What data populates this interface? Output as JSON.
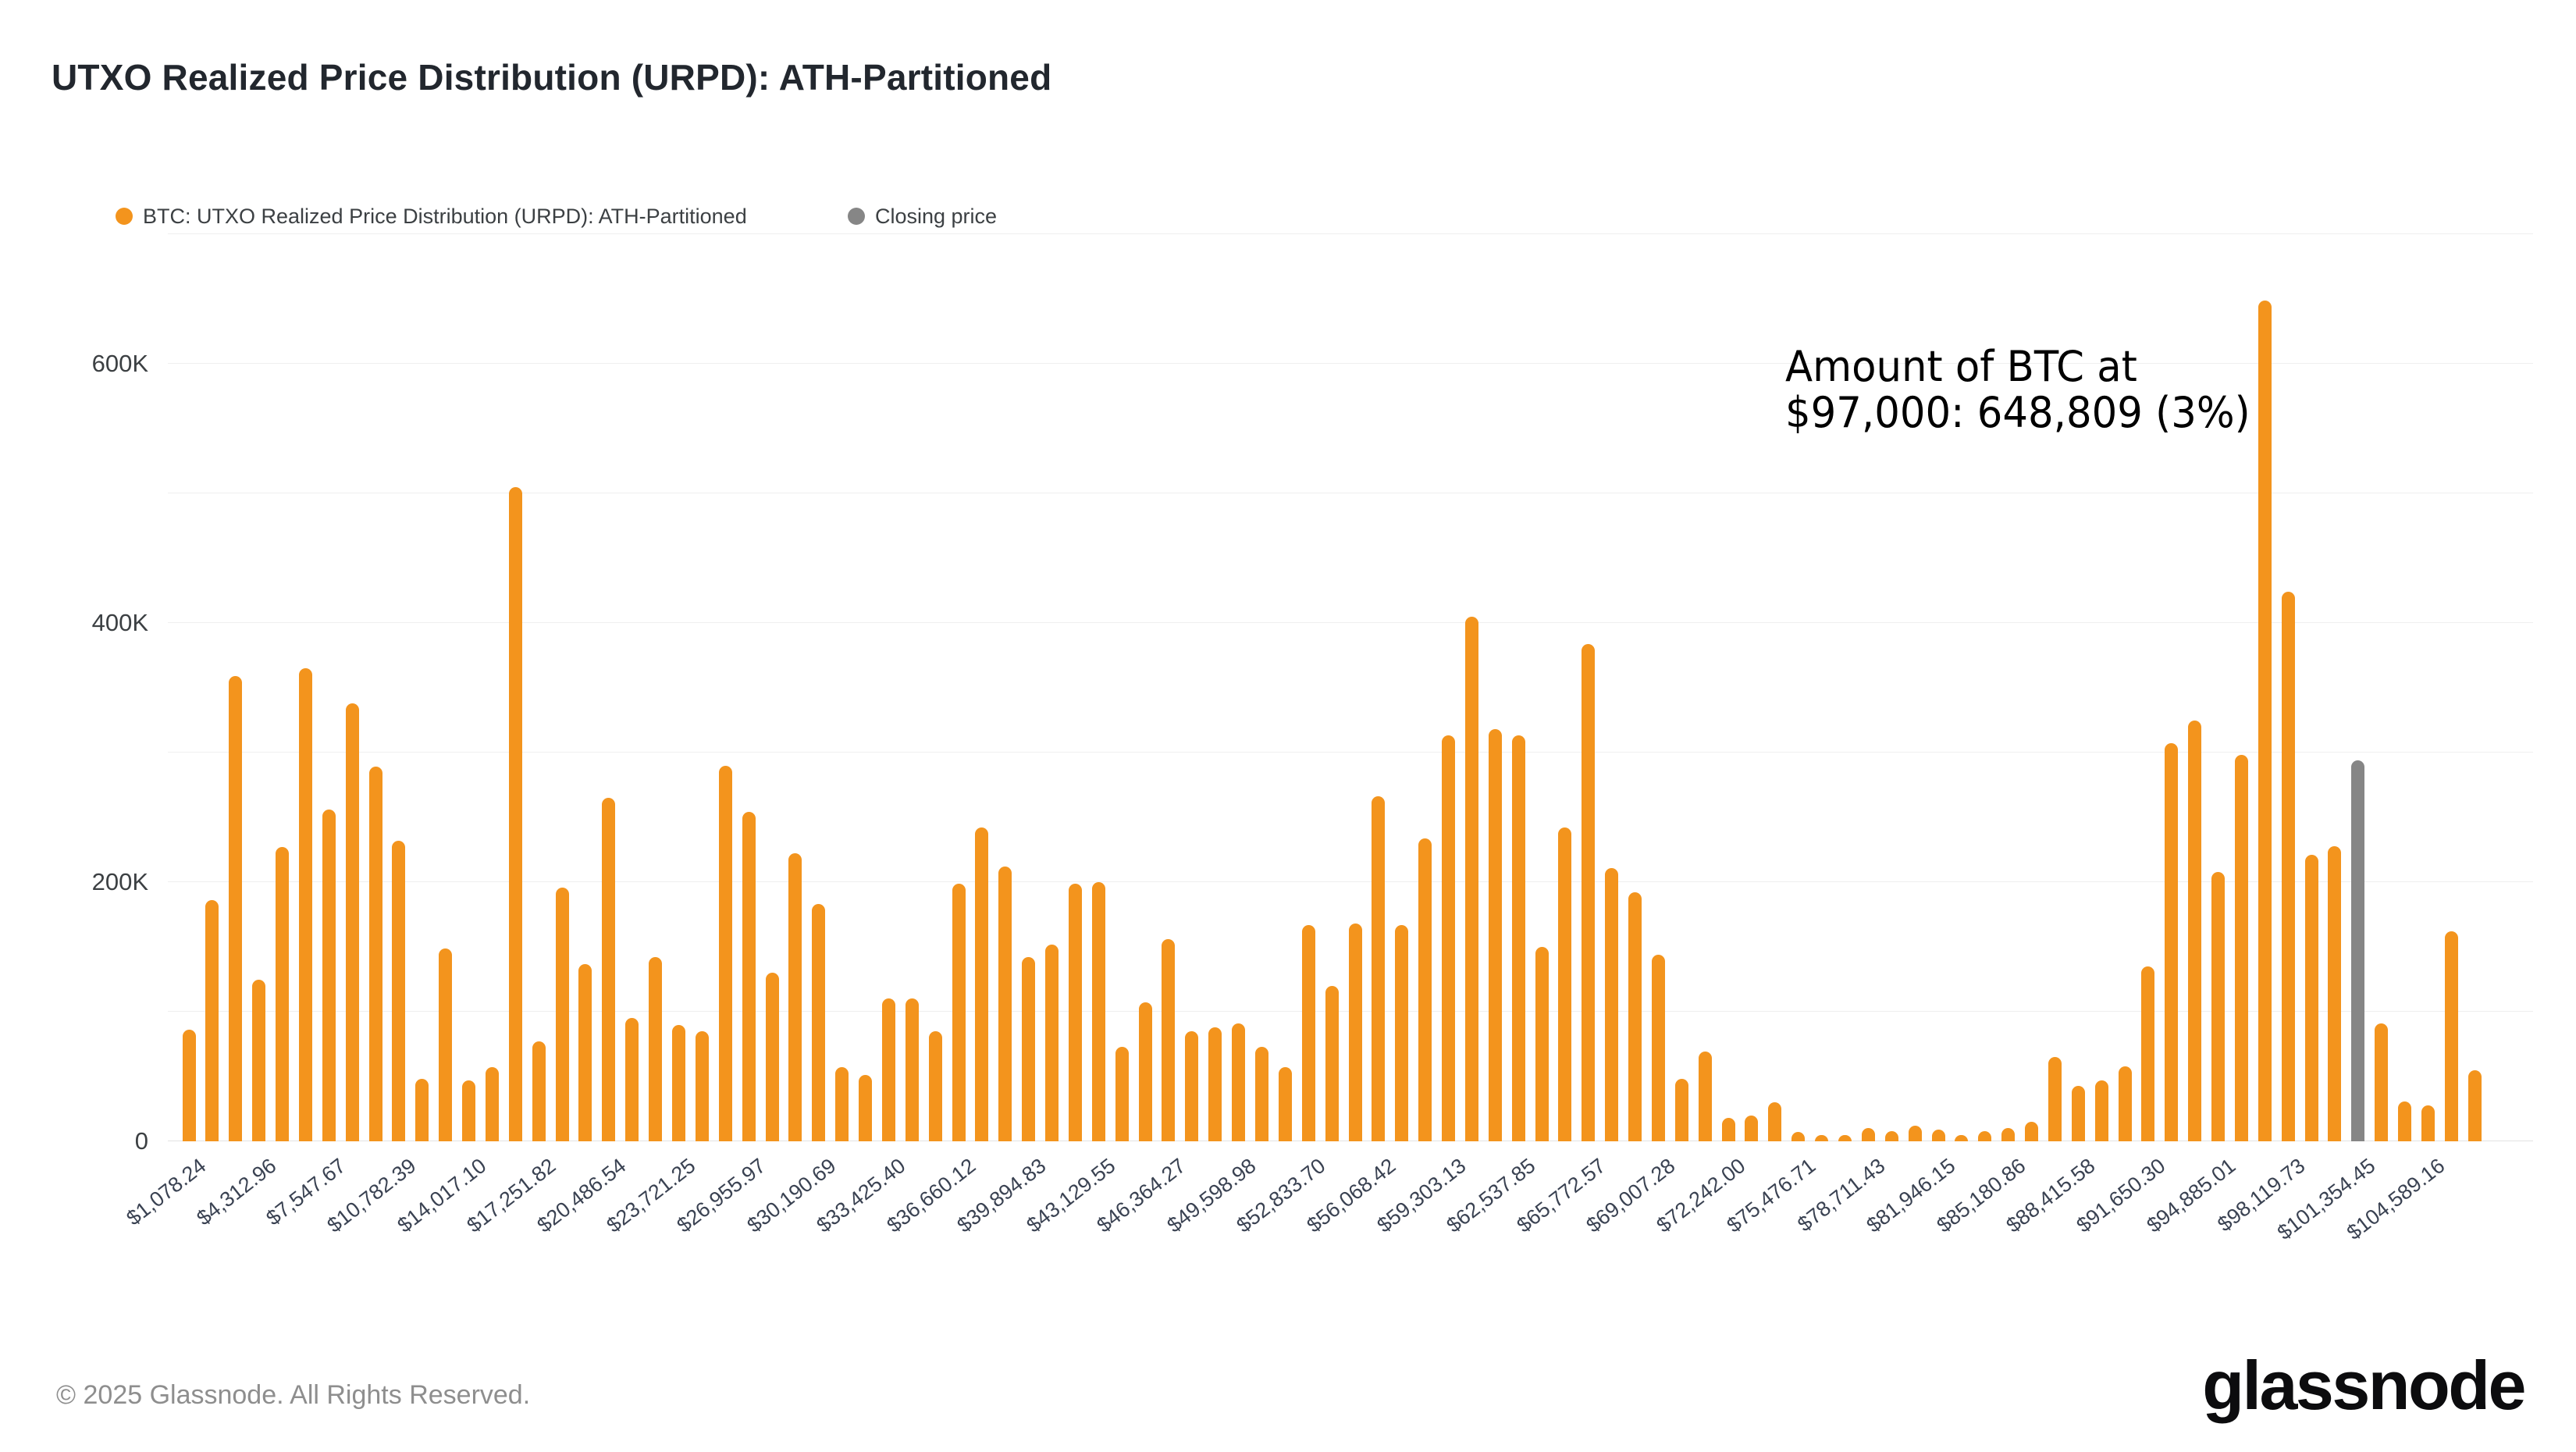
{
  "title": "UTXO Realized Price Distribution (URPD): ATH-Partitioned",
  "legend": [
    {
      "label": "BTC: UTXO Realized Price Distribution (URPD): ATH-Partitioned",
      "color": "#F3941D"
    },
    {
      "label": "Closing price",
      "color": "#868686"
    }
  ],
  "annotation": {
    "line1": "Amount of BTC at",
    "line2": "$97,000: 648,809 (3%)"
  },
  "footer": {
    "copyright": "© 2025 Glassnode. All Rights Reserved.",
    "brand": "glassnode"
  },
  "colors": {
    "bar": "#F3941D",
    "closing_bar": "#868686",
    "grid": "#EFEFEF",
    "zero_line": "#E2E2E2",
    "axis_text": "#3C4043",
    "tick_text": "#3A4252"
  },
  "chart_data": {
    "type": "bar",
    "title": "UTXO Realized Price Distribution (URPD): ATH-Partitioned",
    "xlabel": "",
    "ylabel": "",
    "ylim": [
      0,
      700000
    ],
    "grid_step": 100000,
    "grid": true,
    "legend_position": "top-left",
    "y_ticks": [
      {
        "label": "0",
        "value": 0
      },
      {
        "label": "200K",
        "value": 200000
      },
      {
        "label": "400K",
        "value": 400000
      },
      {
        "label": "600K",
        "value": 600000
      }
    ],
    "x_label_every": 3,
    "x_tick_labels": [
      "$1,078.24",
      "$4,312.96",
      "$7,547.67",
      "$10,782.39",
      "$14,017.10",
      "$17,251.82",
      "$20,486.54",
      "$23,721.25",
      "$26,955.97",
      "$30,190.69",
      "$33,425.40",
      "$36,660.12",
      "$39,894.83",
      "$43,129.55",
      "$46,364.27",
      "$49,598.98",
      "$52,833.70",
      "$56,068.42",
      "$59,303.13",
      "$62,537.85",
      "$65,772.57",
      "$69,007.28",
      "$72,242.00",
      "$75,476.71",
      "$78,711.43",
      "$81,946.15",
      "$85,180.86",
      "$88,415.58",
      "$91,650.30",
      "$94,885.01",
      "$98,119.73",
      "$101,354.45",
      "$104,589.16"
    ],
    "values": [
      86000,
      186000,
      359000,
      125000,
      227000,
      365000,
      256000,
      338000,
      289000,
      232000,
      48000,
      149000,
      47000,
      57000,
      505000,
      77000,
      196000,
      137000,
      265000,
      95000,
      142000,
      90000,
      85000,
      290000,
      254000,
      130000,
      222000,
      183000,
      57000,
      51000,
      110000,
      110000,
      85000,
      199000,
      242000,
      212000,
      142000,
      152000,
      199000,
      200000,
      73000,
      107000,
      156000,
      85000,
      88000,
      91000,
      73000,
      57000,
      167000,
      120000,
      168000,
      266000,
      167000,
      234000,
      313000,
      405000,
      318000,
      313000,
      150000,
      242000,
      384000,
      211000,
      192000,
      144000,
      48000,
      69000,
      18000,
      20000,
      30000,
      7000,
      5000,
      5000,
      10000,
      8000,
      12000,
      9000,
      5000,
      8000,
      10000,
      15000,
      65000,
      43000,
      47000,
      58000,
      135000,
      307000,
      325000,
      208000,
      298000,
      648809,
      424000,
      221000,
      228000,
      294000,
      91000,
      31000,
      28000,
      162000,
      55000
    ],
    "closing_price_bar_index": 93,
    "peak": {
      "index": 89,
      "price_label": "$97,000",
      "value": 648809,
      "share": "3%"
    }
  }
}
